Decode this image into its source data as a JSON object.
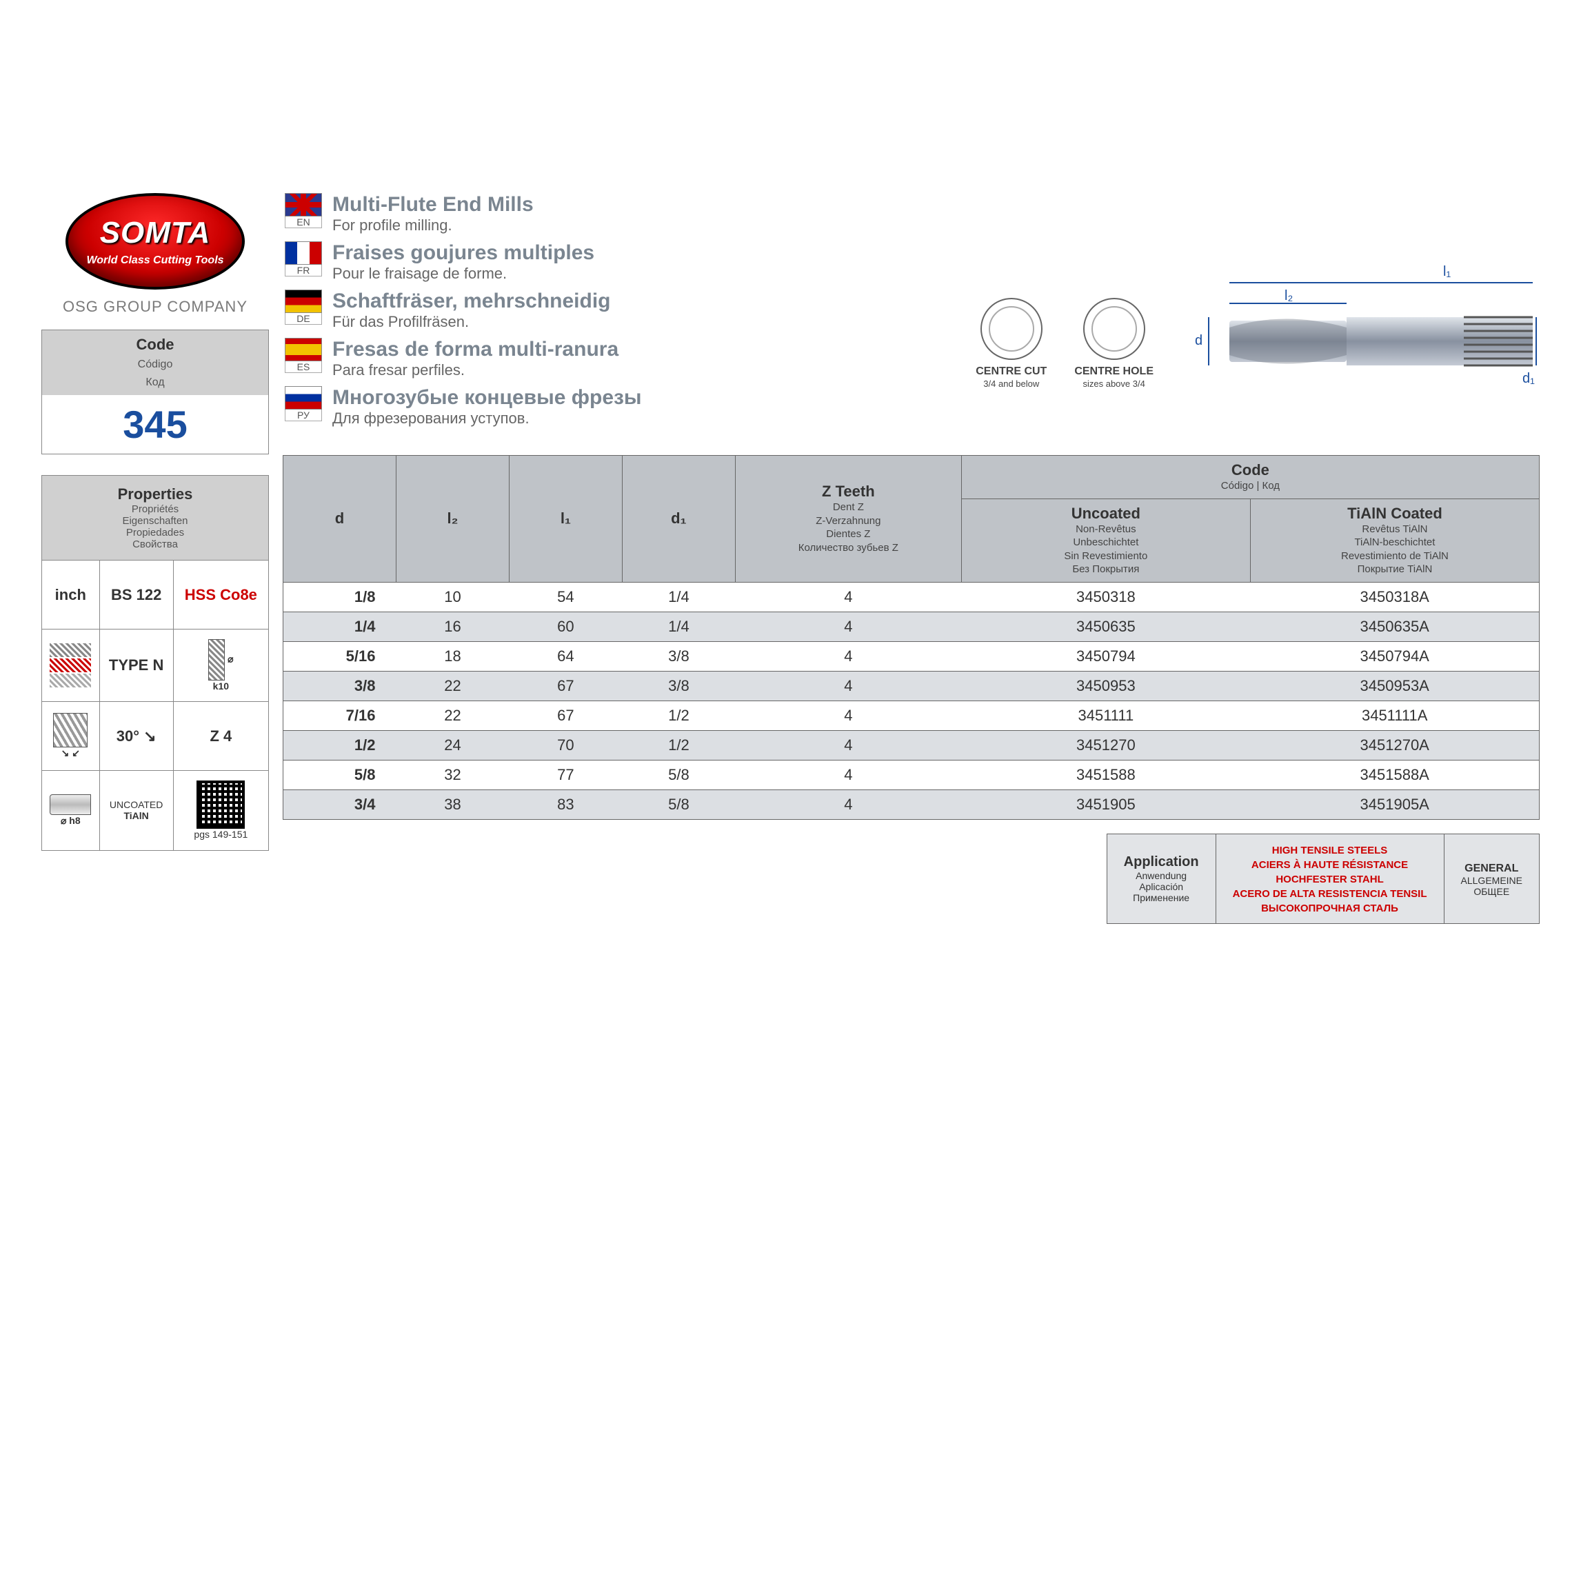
{
  "brand": {
    "name": "SOMTA",
    "tagline": "World Class Cutting Tools",
    "group": "OSG GROUP COMPANY"
  },
  "code_box": {
    "label": "Code",
    "sub1": "Código",
    "sub2": "Код",
    "value": "345"
  },
  "properties": {
    "header": "Properties",
    "subs": [
      "Propriétés",
      "Eigenschaften",
      "Propiedades",
      "Свойства"
    ],
    "r1c1": "inch",
    "r1c2": "BS 122",
    "r1c3": "HSS Co8e",
    "r2c2": "TYPE N",
    "r2c3": "k10",
    "r3c2": "30°",
    "r3c3": "Z 4",
    "r4c1": "⌀ h8",
    "r4c2a": "UNCOATED",
    "r4c2b": "TiAlN",
    "r4c3": "pgs 149-151"
  },
  "languages": [
    {
      "code": "EN",
      "flag": "en",
      "title": "Multi-Flute End Mills",
      "sub": "For profile milling."
    },
    {
      "code": "FR",
      "flag": "fr",
      "title": "Fraises goujures multiples",
      "sub": "Pour le fraisage de forme."
    },
    {
      "code": "DE",
      "flag": "de",
      "title": "Schaftfräser, mehrschneidig",
      "sub": "Für das Profilfräsen."
    },
    {
      "code": "ES",
      "flag": "es",
      "title": "Fresas de forma multi-ranura",
      "sub": "Para fresar perfiles."
    },
    {
      "code": "РУ",
      "flag": "ru",
      "title": "Многозубые концевые фрезы",
      "sub": "Для фрезерования уступов."
    }
  ],
  "diagrams": {
    "centre_cut": {
      "label": "CENTRE CUT",
      "sub": "3/4 and below"
    },
    "centre_hole": {
      "label": "CENTRE HOLE",
      "sub": "sizes above 3/4"
    },
    "dims": {
      "l1": "l₁",
      "l2": "l₂",
      "d": "d",
      "d1": "d₁"
    }
  },
  "table": {
    "headers": {
      "d": "d",
      "l2": "l₂",
      "l1": "l₁",
      "d1": "d₁",
      "z": {
        "main": "Z Teeth",
        "subs": [
          "Dent Z",
          "Z-Verzahnung",
          "Dientes Z",
          "Количество зубьев Z"
        ]
      },
      "code": {
        "main": "Code",
        "sub": "Código | Код"
      },
      "uncoated": {
        "main": "Uncoated",
        "subs": [
          "Non-Revêtus",
          "Unbeschichtet",
          "Sin Revestimiento",
          "Без Покрытия"
        ]
      },
      "coated": {
        "main": "TiAlN Coated",
        "subs": [
          "Revêtus TiAlN",
          "TiAlN-beschichtet",
          "Revestimiento de TiAlN",
          "Покрытие TiAlN"
        ]
      }
    },
    "rows": [
      {
        "d": "1/8",
        "l2": "10",
        "l1": "54",
        "d1": "1/4",
        "z": "4",
        "u": "3450318",
        "c": "3450318A"
      },
      {
        "d": "1/4",
        "l2": "16",
        "l1": "60",
        "d1": "1/4",
        "z": "4",
        "u": "3450635",
        "c": "3450635A"
      },
      {
        "d": "5/16",
        "l2": "18",
        "l1": "64",
        "d1": "3/8",
        "z": "4",
        "u": "3450794",
        "c": "3450794A"
      },
      {
        "d": "3/8",
        "l2": "22",
        "l1": "67",
        "d1": "3/8",
        "z": "4",
        "u": "3450953",
        "c": "3450953A"
      },
      {
        "d": "7/16",
        "l2": "22",
        "l1": "67",
        "d1": "1/2",
        "z": "4",
        "u": "3451111",
        "c": "3451111A"
      },
      {
        "d": "1/2",
        "l2": "24",
        "l1": "70",
        "d1": "1/2",
        "z": "4",
        "u": "3451270",
        "c": "3451270A"
      },
      {
        "d": "5/8",
        "l2": "32",
        "l1": "77",
        "d1": "5/8",
        "z": "4",
        "u": "3451588",
        "c": "3451588A"
      },
      {
        "d": "3/4",
        "l2": "38",
        "l1": "83",
        "d1": "5/8",
        "z": "4",
        "u": "3451905",
        "c": "3451905A"
      }
    ]
  },
  "application": {
    "label": "Application",
    "subs": [
      "Anwendung",
      "Aplicación",
      "Применение"
    ],
    "mat": [
      "HIGH TENSILE STEELS",
      "ACIERS À HAUTE RÉSISTANCE",
      "HOCHFESTER STAHL",
      "ACERO DE ALTA RESISTENCIA TENSIL",
      "ВЫСОКОПРОЧНАЯ СТАЛЬ"
    ],
    "gen": [
      "GENERAL",
      "ALLGEMEINE",
      "ОБЩЕЕ"
    ]
  },
  "colors": {
    "brand_red": "#cc0000",
    "brand_blue": "#1a4e9e",
    "header_grey": "#bfc3c8",
    "row_alt": "#dcdfe3",
    "title_grey": "#7a8590"
  }
}
